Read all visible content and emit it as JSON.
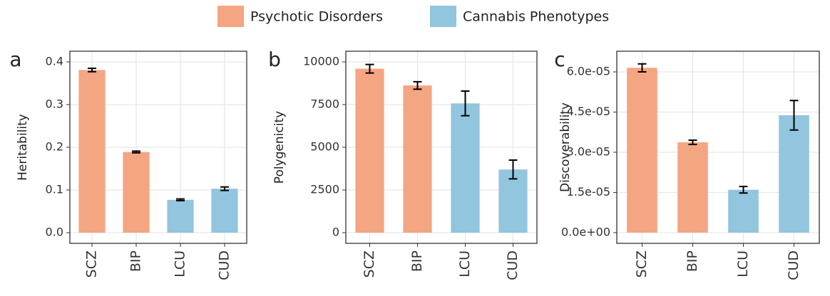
{
  "legend": [
    {
      "name": "Psychotic Disorders",
      "color": "#f4a582"
    },
    {
      "name": "Cannabis Phenotypes",
      "color": "#92c5de"
    }
  ],
  "chart_data": [
    {
      "type": "bar",
      "panel": "a",
      "y_label": "Heritability",
      "categories": [
        "SCZ",
        "BIP",
        "LCU",
        "CUD"
      ],
      "values": [
        0.381,
        0.189,
        0.077,
        0.103
      ],
      "errors": [
        0.004,
        0.002,
        0.002,
        0.004
      ],
      "colors": [
        "#f4a582",
        "#f4a582",
        "#92c5de",
        "#92c5de"
      ],
      "ylim": [
        -0.025,
        0.425
      ],
      "yticks": [
        {
          "value": 0,
          "label": "0.0"
        },
        0.1,
        0.2,
        0.3,
        0.4
      ],
      "grid": true
    },
    {
      "type": "bar",
      "panel": "b",
      "y_label": "Polygenicity",
      "categories": [
        "SCZ",
        "BIP",
        "LCU",
        "CUD"
      ],
      "values": [
        9600,
        8620,
        7570,
        3700
      ],
      "errors": [
        250,
        220,
        720,
        550
      ],
      "colors": [
        "#f4a582",
        "#f4a582",
        "#92c5de",
        "#92c5de"
      ],
      "ylim": [
        -625,
        10625
      ],
      "yticks": [
        0,
        2500,
        5000,
        7500,
        10000
      ],
      "grid": true
    },
    {
      "type": "bar",
      "panel": "c",
      "y_label": "Discoverability",
      "categories": [
        "SCZ",
        "BIP",
        "LCU",
        "CUD"
      ],
      "values": [
        6.15e-05,
        3.37e-05,
        1.6e-05,
        4.38e-05
      ],
      "errors": [
        1.5e-06,
        8e-07,
        1.2e-06,
        5.5e-06
      ],
      "colors": [
        "#f4a582",
        "#f4a582",
        "#92c5de",
        "#92c5de"
      ],
      "ylim": [
        -4e-06,
        6.77e-05
      ],
      "yticks": [
        {
          "value": 0,
          "label": "0.0e+00"
        },
        {
          "value": 1.5e-05,
          "label": "1.5e-05"
        },
        {
          "value": 3e-05,
          "label": "3.0e-05"
        },
        {
          "value": 4.5e-05,
          "label": "4.5e-05"
        },
        {
          "value": 6e-05,
          "label": "6.0e-05"
        }
      ],
      "grid": true
    }
  ]
}
